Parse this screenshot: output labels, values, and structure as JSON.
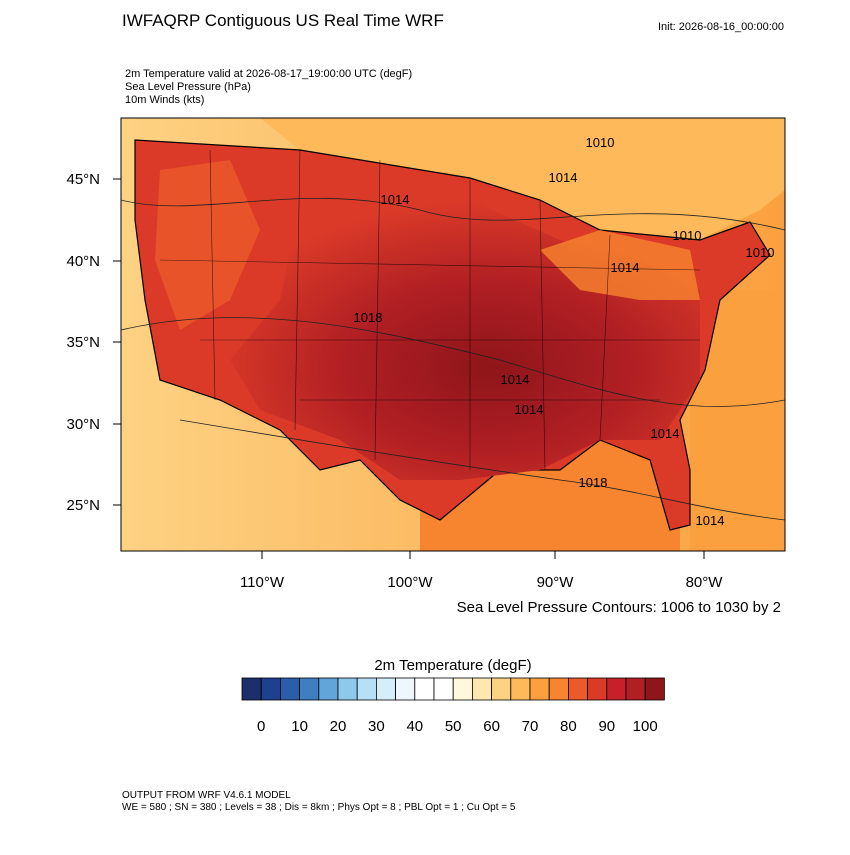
{
  "header": {
    "title": "IWFAQRP Contiguous US Real Time WRF",
    "init": "Init: 2026-08-16_00:00:00",
    "fields": [
      "2m Temperature valid at 2026-08-17_19:00:00 UTC   (degF)",
      "Sea Level Pressure   (hPa)",
      "10m Winds   (kts)"
    ]
  },
  "map": {
    "lat_labels": [
      "45°N",
      "40°N",
      "35°N",
      "30°N",
      "25°N"
    ],
    "lon_labels": [
      "110°W",
      "100°W",
      "90°W",
      "80°W"
    ],
    "contour_labels": [
      "1010",
      "1014",
      "1014",
      "1010",
      "1010",
      "1014",
      "1018",
      "1014",
      "1014",
      "1018",
      "1014",
      "1014"
    ],
    "contour_caption": "Sea Level Pressure Contours: 1006 to 1030 by 2"
  },
  "colorbar": {
    "title": "2m Temperature  (degF)",
    "labels": [
      0,
      10,
      20,
      30,
      40,
      50,
      60,
      70,
      80,
      90,
      100
    ],
    "colors": [
      "#1c2e6b",
      "#1f3f8f",
      "#2a5ea8",
      "#3f7fc0",
      "#62a5d8",
      "#8ec9ec",
      "#b5e0f5",
      "#d6eefa",
      "#eef8fc",
      "#ffffff",
      "#ffffff",
      "#fff8dc",
      "#fee8b0",
      "#fdd283",
      "#fdb95a",
      "#fba03f",
      "#f7842e",
      "#ec5a2a",
      "#db3a28",
      "#c8202a",
      "#b01f24",
      "#8e1519"
    ]
  },
  "footer": {
    "lines": [
      "OUTPUT FROM WRF V4.6.1 MODEL",
      "WE = 580 ; SN = 380 ; Levels = 38 ; Dis = 8km ; Phys Opt = 8 ; PBL Opt = 1 ; Cu Opt = 5"
    ]
  }
}
